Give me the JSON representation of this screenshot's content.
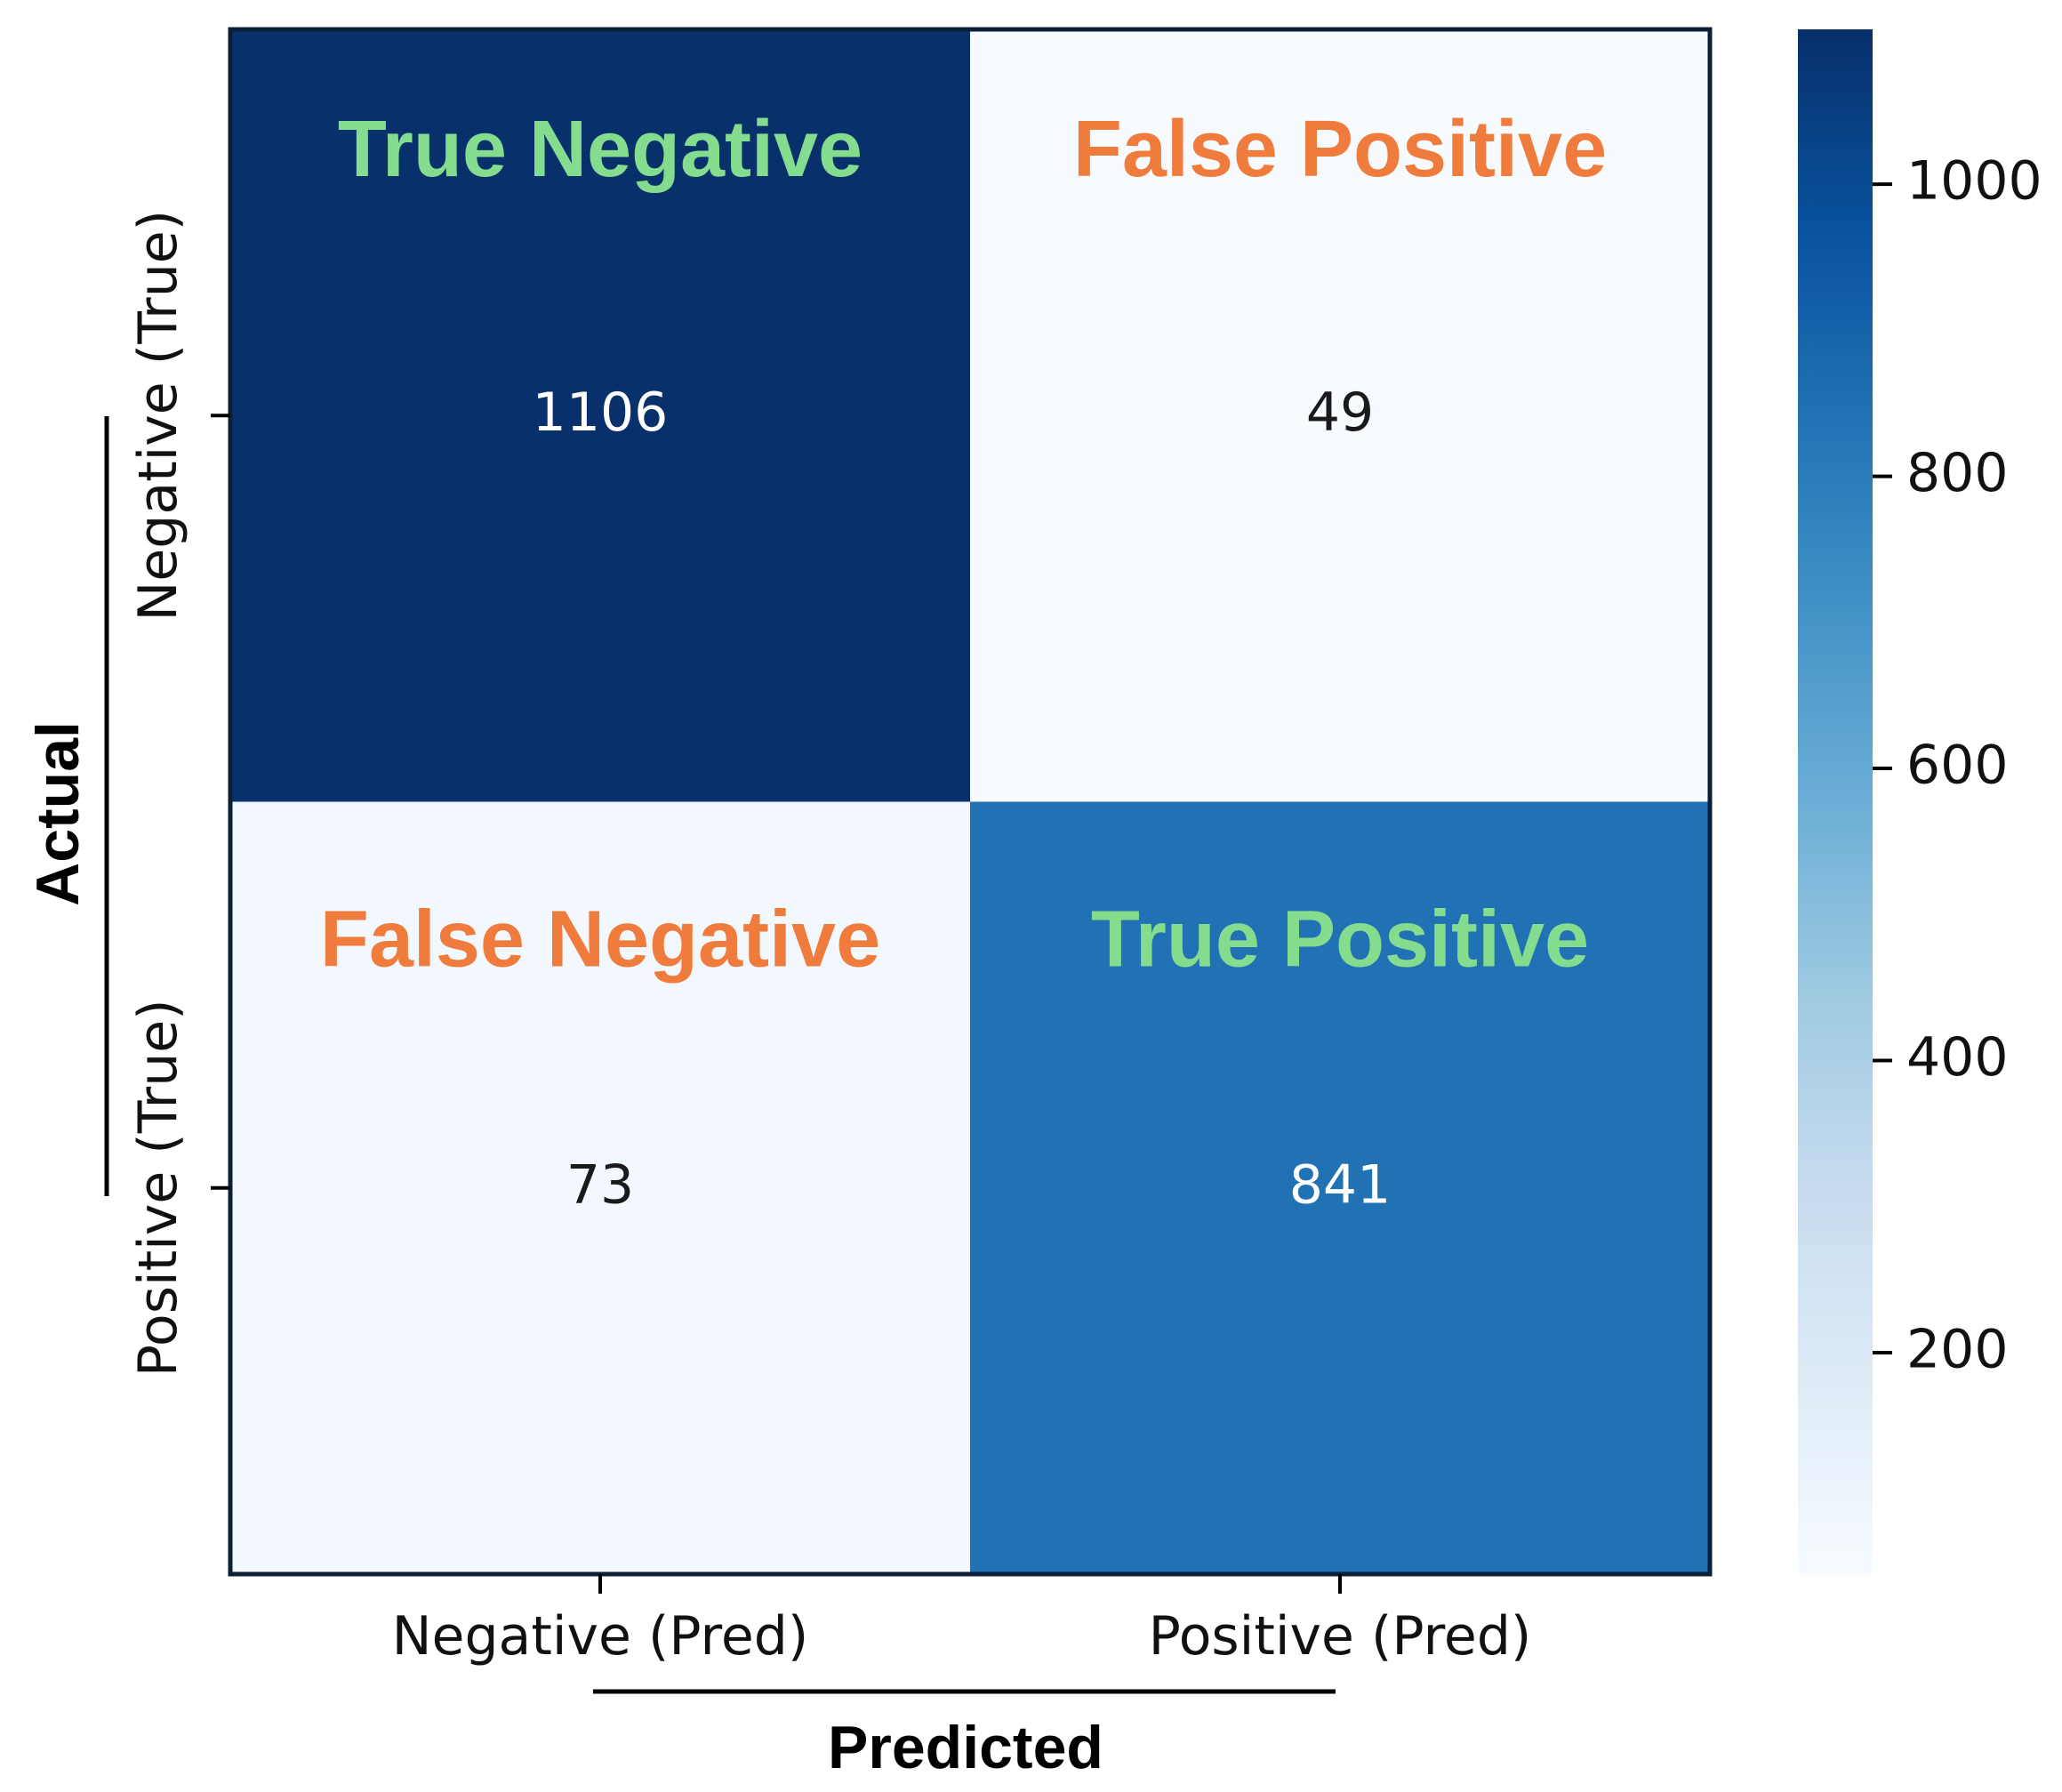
{
  "chart_data": {
    "type": "heatmap",
    "title": "",
    "xlabel": "Predicted",
    "ylabel": "Actual",
    "x_categories": [
      "Negative (Pred)",
      "Positive (Pred)"
    ],
    "y_categories": [
      "Negative (True)",
      "Positive (True)"
    ],
    "values": [
      [
        1106,
        49
      ],
      [
        73,
        841
      ]
    ],
    "quadrant_labels": [
      [
        "True Negative",
        "False Positive"
      ],
      [
        "False Negative",
        "True Positive"
      ]
    ],
    "quadrant_label_colors": [
      [
        "#84dd8e",
        "#ef7c3c"
      ],
      [
        "#ef7c3c",
        "#84dd8e"
      ]
    ],
    "colormap": "Blues",
    "colorbar": {
      "vmin": 49,
      "vmax": 1106,
      "ticks": [
        200,
        400,
        600,
        800,
        1000
      ],
      "tick_labels": [
        "200",
        "400",
        "600",
        "800",
        "1000"
      ]
    },
    "legend": "colorbar-right",
    "grid": false
  }
}
